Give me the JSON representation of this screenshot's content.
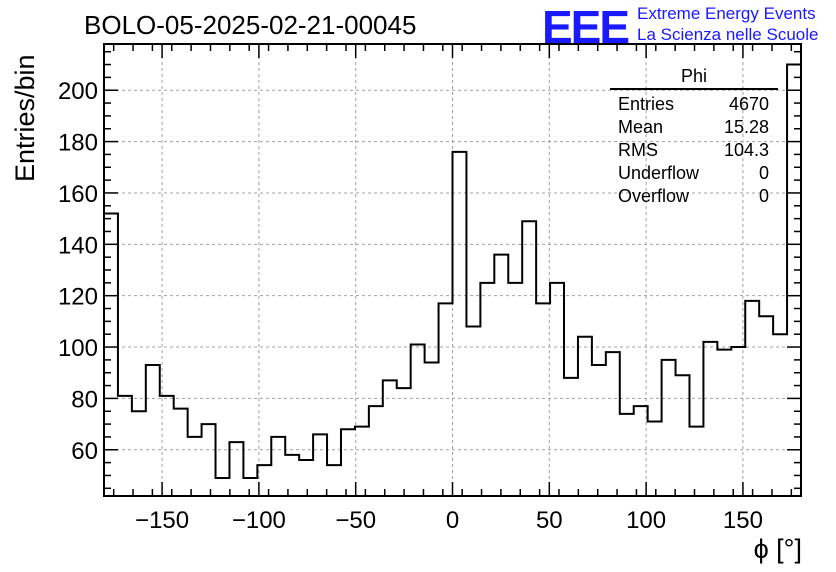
{
  "title": "BOLO-05-2025-02-21-00045",
  "logo": {
    "mark": "EEE",
    "line1": "Extreme Energy Events",
    "line2": "La Scienza nelle Scuole",
    "color": "#1a1aff"
  },
  "chart_data": {
    "type": "histogram",
    "xlabel": "ϕ [°]",
    "ylabel": "Entries/bin",
    "xlim": [
      -180,
      180
    ],
    "ylim": [
      42,
      218
    ],
    "grid": true,
    "bin_width": 7.2,
    "bin_start": -180,
    "values": [
      152,
      81,
      75,
      93,
      81,
      76,
      65,
      70,
      49,
      63,
      49,
      54,
      65,
      58,
      56,
      66,
      54,
      68,
      69,
      77,
      87,
      84,
      101,
      94,
      117,
      176,
      108,
      125,
      136,
      125,
      149,
      117,
      125,
      88,
      104,
      93,
      98,
      74,
      77,
      71,
      95,
      89,
      69,
      102,
      99,
      100,
      118,
      112,
      105,
      210
    ],
    "xticks": [
      "−150",
      "−100",
      "−50",
      "0",
      "50",
      "100",
      "150"
    ],
    "yticks": [
      "60",
      "80",
      "100",
      "120",
      "140",
      "160",
      "180",
      "200"
    ],
    "line_color": "#000000",
    "stats": {
      "name": "Phi",
      "rows": [
        {
          "label": "Entries",
          "value": "4670"
        },
        {
          "label": "Mean",
          "value": "15.28"
        },
        {
          "label": "RMS",
          "value": "104.3"
        },
        {
          "label": "Underflow",
          "value": "0"
        },
        {
          "label": "Overflow",
          "value": "0"
        }
      ]
    }
  }
}
